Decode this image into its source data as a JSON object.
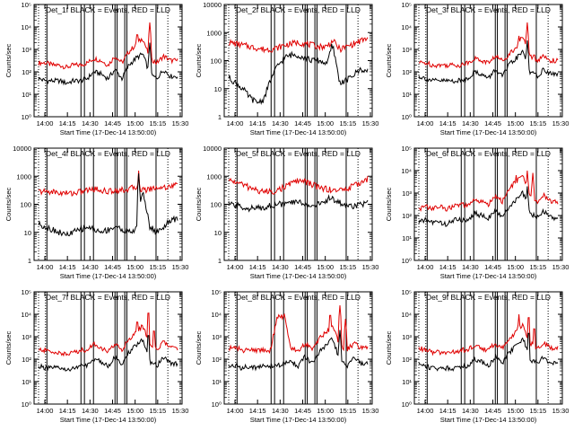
{
  "colors": {
    "events": "#000000",
    "lld": "#e00000",
    "frame": "#000000"
  },
  "time_axis": {
    "tick_labels": [
      "14:00",
      "14:15",
      "14:30",
      "14:45",
      "15:00",
      "15:15",
      "15:30"
    ],
    "xlabel": "Start Time (17-Dec-14 13:50:00)"
  },
  "ylabel": "Counts/sec",
  "chart_data": [
    {
      "type": "line",
      "title": "Det_1f BLACK = Events, RED = LLD",
      "scale": "log",
      "ylim_exp": [
        0,
        5
      ],
      "tick_labels": [
        "10⁰",
        "10¹",
        "10²",
        "10³",
        "10⁴",
        "10⁵"
      ],
      "x": [
        0,
        0.05,
        0.1,
        0.15,
        0.2,
        0.25,
        0.3,
        0.35,
        0.4,
        0.45,
        0.5,
        0.55,
        0.6,
        0.65,
        0.7,
        0.75,
        0.8,
        0.85,
        0.9,
        0.95,
        1
      ],
      "series": [
        {
          "color": "lld",
          "values": [
            2.4,
            2.4,
            2.3,
            2.3,
            2.2,
            2.3,
            2.3,
            2.4,
            2.6,
            2.5,
            2.3,
            2.7,
            2.4,
            2.9,
            3.2,
            3.5,
            2.6,
            2.4,
            2.7,
            2.5,
            2.5
          ],
          "spikes": [
            [
              0.71,
              3.9
            ],
            [
              0.8,
              4.2
            ]
          ]
        },
        {
          "color": "events",
          "values": [
            1.7,
            1.6,
            1.6,
            1.6,
            1.5,
            1.6,
            1.6,
            1.7,
            2.0,
            1.9,
            1.7,
            2.1,
            1.7,
            2.3,
            2.6,
            2.8,
            1.9,
            1.7,
            2.1,
            1.8,
            1.8
          ],
          "spikes": [
            [
              0.8,
              3.3
            ]
          ]
        }
      ]
    },
    {
      "type": "line",
      "title": "Det_2f BLACK = Events, RED = LLD",
      "scale": "log",
      "ylim_exp": [
        0,
        4
      ],
      "tick_labels": [
        "1",
        "10",
        "100",
        "1000",
        "10000"
      ],
      "x": [
        0,
        0.05,
        0.1,
        0.15,
        0.2,
        0.25,
        0.3,
        0.35,
        0.4,
        0.45,
        0.5,
        0.55,
        0.6,
        0.65,
        0.7,
        0.75,
        0.8,
        0.85,
        0.9,
        0.95,
        1
      ],
      "series": [
        {
          "color": "lld",
          "values": [
            2.65,
            2.6,
            2.55,
            2.5,
            2.45,
            2.4,
            2.4,
            2.45,
            2.55,
            2.6,
            2.65,
            2.6,
            2.55,
            2.5,
            2.5,
            2.7,
            2.4,
            2.5,
            2.6,
            2.7,
            2.8
          ],
          "spikes": [
            [
              0.75,
              2.9
            ]
          ]
        },
        {
          "color": "events",
          "values": [
            1.4,
            1.2,
            1.0,
            0.7,
            0.5,
            0.6,
            1.3,
            1.8,
            2.1,
            2.2,
            2.2,
            2.1,
            2.0,
            2.0,
            1.9,
            2.5,
            1.2,
            1.3,
            1.5,
            1.7,
            1.6
          ],
          "spikes": [
            [
              0.74,
              2.6
            ]
          ]
        }
      ]
    },
    {
      "type": "line",
      "title": "Det_3f BLACK = Events, RED = LLD",
      "scale": "log",
      "ylim_exp": [
        0,
        5
      ],
      "tick_labels": [
        "10⁰",
        "10¹",
        "10²",
        "10³",
        "10⁴",
        "10⁵"
      ],
      "x": [
        0,
        0.05,
        0.1,
        0.15,
        0.2,
        0.25,
        0.3,
        0.35,
        0.4,
        0.45,
        0.5,
        0.55,
        0.6,
        0.65,
        0.7,
        0.75,
        0.8,
        0.85,
        0.9,
        0.95,
        1
      ],
      "series": [
        {
          "color": "lld",
          "values": [
            2.4,
            2.4,
            2.3,
            2.3,
            2.3,
            2.3,
            2.3,
            2.4,
            2.6,
            2.5,
            2.4,
            2.7,
            2.5,
            2.8,
            3.1,
            3.6,
            2.7,
            2.5,
            2.7,
            2.5,
            2.5
          ],
          "spikes": [
            [
              0.72,
              3.6
            ],
            [
              0.78,
              4.2
            ],
            [
              0.83,
              3.0
            ]
          ]
        },
        {
          "color": "events",
          "values": [
            1.8,
            1.7,
            1.6,
            1.6,
            1.6,
            1.6,
            1.6,
            1.7,
            2.0,
            1.9,
            1.7,
            2.1,
            1.8,
            2.3,
            2.6,
            2.9,
            2.0,
            1.8,
            2.1,
            1.9,
            1.9
          ],
          "spikes": [
            [
              0.78,
              3.4
            ]
          ]
        }
      ]
    },
    {
      "type": "line",
      "title": "Det_4f BLACK = Events, RED = LLD",
      "scale": "log",
      "ylim_exp": [
        0,
        4
      ],
      "tick_labels": [
        "1",
        "10",
        "100",
        "1000",
        "10000"
      ],
      "x": [
        0,
        0.05,
        0.1,
        0.15,
        0.2,
        0.25,
        0.3,
        0.35,
        0.4,
        0.45,
        0.5,
        0.55,
        0.6,
        0.65,
        0.7,
        0.75,
        0.8,
        0.85,
        0.9,
        0.95,
        1
      ],
      "series": [
        {
          "color": "lld",
          "values": [
            2.45,
            2.45,
            2.45,
            2.4,
            2.4,
            2.4,
            2.45,
            2.5,
            2.55,
            2.5,
            2.45,
            2.5,
            2.5,
            2.55,
            2.6,
            2.5,
            2.55,
            2.6,
            2.6,
            2.65,
            2.7
          ],
          "spikes": [
            [
              0.72,
              3.2
            ]
          ]
        },
        {
          "color": "events",
          "values": [
            1.3,
            1.2,
            1.1,
            1.0,
            0.9,
            1.0,
            1.1,
            1.2,
            1.1,
            1.0,
            1.1,
            1.2,
            1.1,
            1.0,
            1.1,
            2.5,
            1.2,
            1.0,
            1.2,
            1.4,
            1.5
          ],
          "spikes": [
            [
              0.72,
              3.1
            ]
          ]
        }
      ]
    },
    {
      "type": "line",
      "title": "Det_5f BLACK = Events, RED = LLD",
      "scale": "log",
      "ylim_exp": [
        0,
        4
      ],
      "tick_labels": [
        "1",
        "10",
        "100",
        "1000",
        "10000"
      ],
      "x": [
        0,
        0.05,
        0.1,
        0.15,
        0.2,
        0.25,
        0.3,
        0.35,
        0.4,
        0.45,
        0.5,
        0.55,
        0.6,
        0.65,
        0.7,
        0.75,
        0.8,
        0.85,
        0.9,
        0.95,
        1
      ],
      "series": [
        {
          "color": "lld",
          "values": [
            2.85,
            2.8,
            2.7,
            2.6,
            2.5,
            2.45,
            2.45,
            2.5,
            2.6,
            2.75,
            2.85,
            2.8,
            2.7,
            2.6,
            2.55,
            2.5,
            2.5,
            2.55,
            2.65,
            2.8,
            2.9
          ],
          "spikes": []
        },
        {
          "color": "events",
          "values": [
            2.0,
            1.95,
            1.9,
            1.85,
            1.85,
            1.9,
            1.95,
            2.0,
            2.0,
            2.05,
            2.1,
            2.0,
            1.95,
            2.0,
            2.1,
            2.2,
            2.05,
            1.95,
            1.95,
            2.0,
            2.05
          ],
          "spikes": [
            [
              0.72,
              2.3
            ]
          ]
        }
      ]
    },
    {
      "type": "line",
      "title": "Det_6f BLACK = Events, RED = LLD",
      "scale": "log",
      "ylim_exp": [
        0,
        5
      ],
      "tick_labels": [
        "10⁰",
        "10¹",
        "10²",
        "10³",
        "10⁴",
        "10⁵"
      ],
      "x": [
        0,
        0.05,
        0.1,
        0.15,
        0.2,
        0.25,
        0.3,
        0.35,
        0.4,
        0.45,
        0.5,
        0.55,
        0.6,
        0.65,
        0.7,
        0.75,
        0.8,
        0.85,
        0.9,
        0.95,
        1
      ],
      "series": [
        {
          "color": "lld",
          "values": [
            2.3,
            2.4,
            2.3,
            2.4,
            2.3,
            2.4,
            2.5,
            2.4,
            2.7,
            2.6,
            2.5,
            2.9,
            2.6,
            3.2,
            3.5,
            3.8,
            2.8,
            2.6,
            2.9,
            2.6,
            2.6
          ],
          "spikes": [
            [
              0.7,
              3.8
            ],
            [
              0.78,
              4.0
            ],
            [
              0.82,
              3.9
            ]
          ]
        },
        {
          "color": "events",
          "values": [
            1.7,
            1.8,
            1.7,
            1.7,
            1.6,
            1.8,
            1.8,
            1.8,
            2.1,
            2.0,
            1.9,
            2.2,
            1.9,
            2.4,
            2.7,
            3.0,
            2.1,
            1.9,
            2.2,
            1.9,
            1.9
          ],
          "spikes": [
            [
              0.78,
              3.3
            ]
          ]
        }
      ]
    },
    {
      "type": "line",
      "title": "Det_7f BLACK = Events, RED = LLD",
      "scale": "log",
      "ylim_exp": [
        0,
        5
      ],
      "tick_labels": [
        "10⁰",
        "10¹",
        "10²",
        "10³",
        "10⁴",
        "10⁵"
      ],
      "x": [
        0,
        0.05,
        0.1,
        0.15,
        0.2,
        0.25,
        0.3,
        0.35,
        0.4,
        0.45,
        0.5,
        0.55,
        0.6,
        0.65,
        0.7,
        0.75,
        0.8,
        0.85,
        0.9,
        0.95,
        1
      ],
      "series": [
        {
          "color": "lld",
          "values": [
            2.4,
            2.4,
            2.3,
            2.3,
            2.2,
            2.3,
            2.4,
            2.4,
            2.7,
            2.5,
            2.3,
            2.7,
            2.4,
            2.9,
            3.2,
            3.5,
            2.6,
            2.4,
            2.8,
            2.5,
            2.5
          ],
          "spikes": [
            [
              0.71,
              3.9
            ],
            [
              0.79,
              4.3
            ],
            [
              0.83,
              3.5
            ]
          ]
        },
        {
          "color": "events",
          "values": [
            1.7,
            1.6,
            1.6,
            1.6,
            1.5,
            1.6,
            1.7,
            1.7,
            2.0,
            1.9,
            1.7,
            2.1,
            1.7,
            2.3,
            2.6,
            2.9,
            1.9,
            1.7,
            2.1,
            1.8,
            1.8
          ],
          "spikes": [
            [
              0.79,
              3.3
            ]
          ]
        }
      ]
    },
    {
      "type": "line",
      "title": "Det_8f BLACK = Events, RED = LLD",
      "scale": "log",
      "ylim_exp": [
        0,
        5
      ],
      "tick_labels": [
        "10⁰",
        "10¹",
        "10²",
        "10³",
        "10⁴",
        "10⁵"
      ],
      "x": [
        0,
        0.05,
        0.1,
        0.15,
        0.2,
        0.25,
        0.3,
        0.35,
        0.4,
        0.45,
        0.5,
        0.55,
        0.6,
        0.65,
        0.7,
        0.75,
        0.8,
        0.85,
        0.9,
        0.95,
        1
      ],
      "series": [
        {
          "color": "lld",
          "values": [
            2.5,
            2.5,
            2.4,
            2.4,
            2.4,
            2.4,
            2.4,
            3.9,
            3.9,
            2.5,
            2.4,
            2.7,
            2.5,
            2.9,
            3.2,
            3.5,
            2.6,
            2.4,
            2.7,
            2.5,
            2.5
          ],
          "spikes": [
            [
              0.73,
              4.2
            ],
            [
              0.8,
              4.4
            ],
            [
              0.84,
              3.8
            ]
          ]
        },
        {
          "color": "events",
          "values": [
            1.7,
            1.7,
            1.6,
            1.7,
            1.6,
            1.7,
            1.7,
            1.7,
            1.8,
            1.9,
            1.7,
            2.1,
            1.8,
            2.3,
            2.6,
            2.9,
            1.9,
            1.7,
            2.1,
            1.8,
            1.8
          ],
          "spikes": [
            [
              0.8,
              3.3
            ]
          ]
        }
      ]
    },
    {
      "type": "line",
      "title": "Det_9f BLACK = Events, RED = LLD",
      "scale": "log",
      "ylim_exp": [
        0,
        5
      ],
      "tick_labels": [
        "10⁰",
        "10¹",
        "10²",
        "10³",
        "10⁴",
        "10⁵"
      ],
      "x": [
        0,
        0.05,
        0.1,
        0.15,
        0.2,
        0.25,
        0.3,
        0.35,
        0.4,
        0.45,
        0.5,
        0.55,
        0.6,
        0.65,
        0.7,
        0.75,
        0.8,
        0.85,
        0.9,
        0.95,
        1
      ],
      "series": [
        {
          "color": "lld",
          "values": [
            2.5,
            2.4,
            2.3,
            2.3,
            2.3,
            2.3,
            2.4,
            2.4,
            2.6,
            2.5,
            2.4,
            2.7,
            2.5,
            2.9,
            3.2,
            3.5,
            2.7,
            2.5,
            2.7,
            2.5,
            2.5
          ],
          "spikes": [
            [
              0.72,
              4.0
            ],
            [
              0.79,
              4.1
            ],
            [
              0.83,
              3.6
            ]
          ]
        },
        {
          "color": "events",
          "values": [
            1.8,
            1.7,
            1.6,
            1.6,
            1.6,
            1.6,
            1.7,
            1.7,
            2.0,
            1.9,
            1.7,
            2.1,
            1.8,
            2.3,
            2.6,
            2.9,
            2.0,
            1.8,
            2.1,
            1.8,
            1.8
          ],
          "spikes": [
            [
              0.79,
              3.4
            ]
          ]
        }
      ]
    }
  ]
}
